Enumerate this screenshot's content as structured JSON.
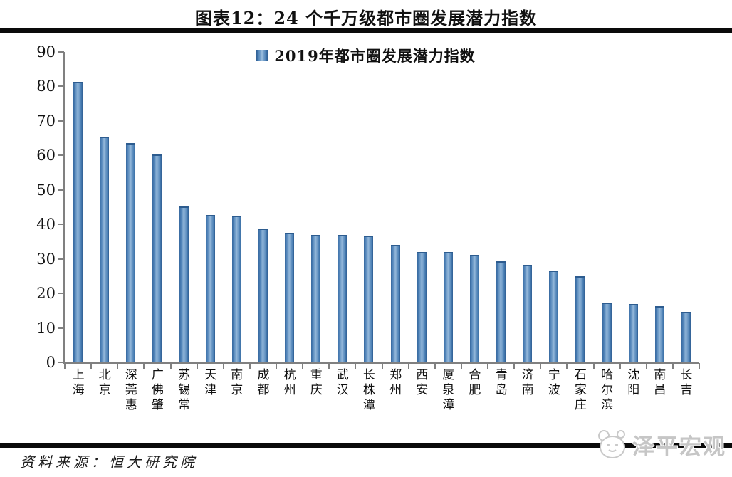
{
  "title": "图表12：24 个千万级都市圈发展潜力指数",
  "source": "资料来源：恒大研究院",
  "watermark": "泽平宏观",
  "colors": {
    "bar_edge": "#2e5d92",
    "bar_mid": "#4a7fb5",
    "bar_highlight": "#9cbede",
    "axis": "#808080",
    "rule": "#0a0a0a",
    "watermark_gray": "#c6c6c6"
  },
  "chart_data": {
    "type": "bar",
    "title": "图表12：24 个千万级都市圈发展潜力指数",
    "legend_label": "2019年都市圈发展潜力指数",
    "legend_position": "top-center",
    "grid": false,
    "categories": [
      "上海",
      "北京",
      "深莞惠",
      "广佛肇",
      "苏锡常",
      "天津",
      "南京",
      "成都",
      "杭州",
      "重庆",
      "武汉",
      "长株潭",
      "郑州",
      "西安",
      "厦泉漳",
      "合肥",
      "青岛",
      "济南",
      "宁波",
      "石家庄",
      "哈尔滨",
      "沈阳",
      "南昌",
      "长吉"
    ],
    "values": [
      81.3,
      65.4,
      63.5,
      60.3,
      45.2,
      42.8,
      42.6,
      38.9,
      37.6,
      37.0,
      37.0,
      36.8,
      34.1,
      32.1,
      32.0,
      31.1,
      29.4,
      28.2,
      26.7,
      25.0,
      17.4,
      17.0,
      16.4,
      14.6
    ],
    "xlabel": "",
    "ylabel": "",
    "ylim": [
      0,
      90
    ],
    "yticks": [
      0,
      10,
      20,
      30,
      40,
      50,
      60,
      70,
      80,
      90
    ]
  }
}
